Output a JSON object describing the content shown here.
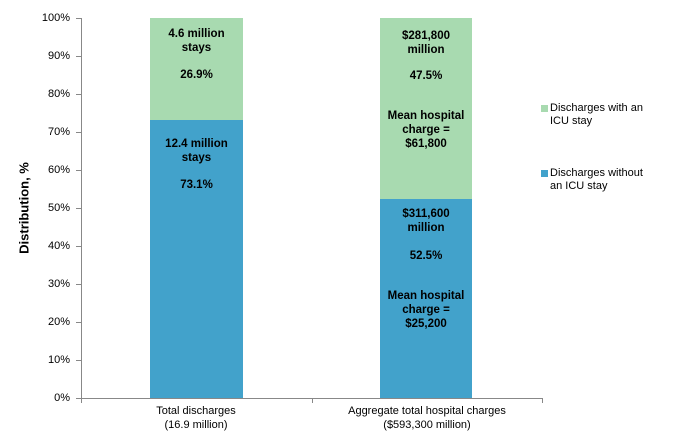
{
  "y_axis": {
    "title": "Distribution, %",
    "ticks": [
      "0%",
      "10%",
      "20%",
      "30%",
      "40%",
      "50%",
      "60%",
      "70%",
      "80%",
      "90%",
      "100%"
    ]
  },
  "colors": {
    "icu_green": "#a8dab0",
    "no_icu_blue": "#42a2cb",
    "axis_gray": "#888888"
  },
  "legend": {
    "items": [
      {
        "label": "Discharges with an ICU stay",
        "color": "#a8dab0"
      },
      {
        "label": "Discharges without an ICU stay",
        "color": "#42a2cb"
      }
    ]
  },
  "bars": [
    {
      "category": "Total discharges\n(16.9 million)",
      "icu": {
        "label": "4.6 million\nstays",
        "pct": "26.9%"
      },
      "no_icu": {
        "label": "12.4 million\nstays",
        "pct": "73.1%"
      }
    },
    {
      "category": "Aggregate total hospital charges\n($593,300 million)",
      "icu": {
        "label": "$281,800\nmillion",
        "pct": "47.5%",
        "mean": "Mean hospital\ncharge =\n$61,800"
      },
      "no_icu": {
        "label": "$311,600\nmillion",
        "pct": "52.5%",
        "mean": "Mean hospital\ncharge =\n$25,200"
      }
    }
  ],
  "chart_data": {
    "type": "bar",
    "stacked": true,
    "title": "",
    "categories": [
      "Total discharges (16.9 million)",
      "Aggregate total hospital charges ($593,300 million)"
    ],
    "series": [
      {
        "name": "Discharges without an ICU stay",
        "color": "#42a2cb",
        "values": [
          73.1,
          52.5
        ]
      },
      {
        "name": "Discharges with an ICU stay",
        "color": "#a8dab0",
        "values": [
          26.9,
          47.5
        ]
      }
    ],
    "xlabel": "",
    "ylabel": "Distribution, %",
    "ylim": [
      0,
      100
    ],
    "y_tick_step": 10,
    "grid": false,
    "legend_position": "right",
    "annotations": {
      "total_discharges": "16.9 million",
      "icu_stays": "4.6 million stays (26.9%)",
      "non_icu_stays": "12.4 million stays (73.1%)",
      "aggregate_charges": "$593,300 million",
      "icu_charges": "$281,800 million (47.5%)",
      "non_icu_charges": "$311,600 million (52.5%)",
      "mean_hospital_charge_icu": "$61,800",
      "mean_hospital_charge_non_icu": "$25,200"
    }
  }
}
